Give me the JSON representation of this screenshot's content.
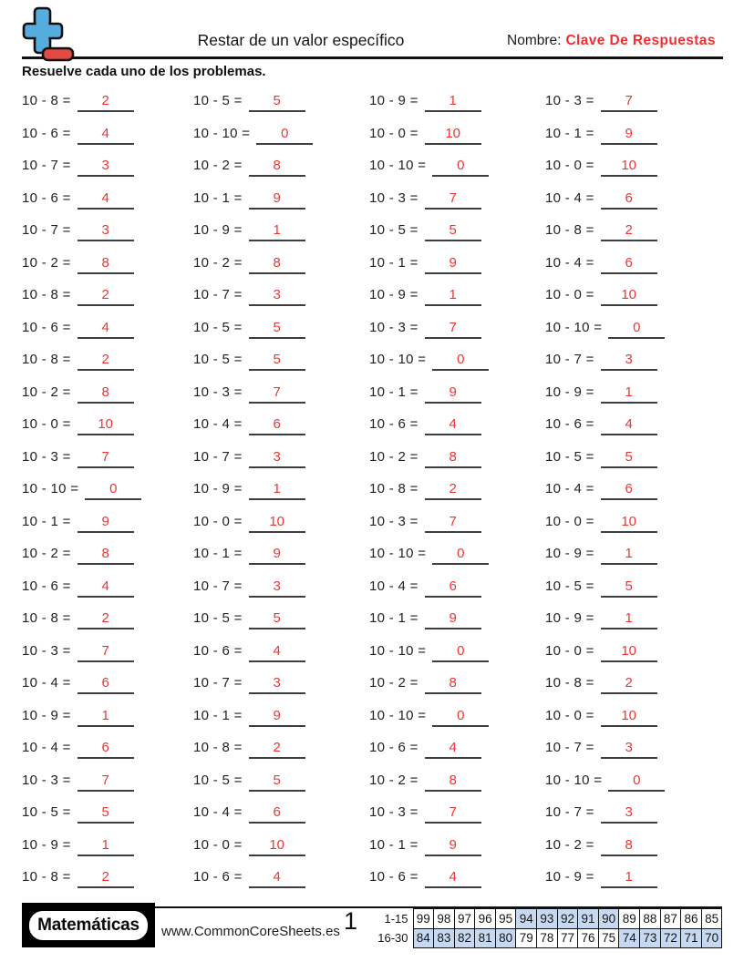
{
  "header": {
    "title": "Restar de un valor específico",
    "name_label": "Nombre:",
    "name_value": "Clave De Respuestas",
    "instruction": "Resuelve cada uno de los problemas."
  },
  "colors": {
    "answer_red": "#ef3434",
    "score_shade_blue": "#c6d9f0",
    "logo_plus_blue": "#55acdd",
    "logo_minus_red": "#e24a43"
  },
  "problems": {
    "columns": [
      {
        "items": [
          {
            "q": "10 - 8 =",
            "a": "2"
          },
          {
            "q": "10 - 6 =",
            "a": "4"
          },
          {
            "q": "10 - 7 =",
            "a": "3"
          },
          {
            "q": "10 - 6 =",
            "a": "4"
          },
          {
            "q": "10 - 7 =",
            "a": "3"
          },
          {
            "q": "10 - 2 =",
            "a": "8"
          },
          {
            "q": "10 - 8 =",
            "a": "2"
          },
          {
            "q": "10 - 6 =",
            "a": "4"
          },
          {
            "q": "10 - 8 =",
            "a": "2"
          },
          {
            "q": "10 - 2 =",
            "a": "8"
          },
          {
            "q": "10 - 0 =",
            "a": "10"
          },
          {
            "q": "10 - 3 =",
            "a": "7"
          },
          {
            "q": "10 - 10 =",
            "a": "0"
          },
          {
            "q": "10 - 1 =",
            "a": "9"
          },
          {
            "q": "10 - 2 =",
            "a": "8"
          },
          {
            "q": "10 - 6 =",
            "a": "4"
          },
          {
            "q": "10 - 8 =",
            "a": "2"
          },
          {
            "q": "10 - 3 =",
            "a": "7"
          },
          {
            "q": "10 - 4 =",
            "a": "6"
          },
          {
            "q": "10 - 9 =",
            "a": "1"
          },
          {
            "q": "10 - 4 =",
            "a": "6"
          },
          {
            "q": "10 - 3 =",
            "a": "7"
          },
          {
            "q": "10 - 5 =",
            "a": "5"
          },
          {
            "q": "10 - 9 =",
            "a": "1"
          },
          {
            "q": "10 - 8 =",
            "a": "2"
          }
        ]
      },
      {
        "items": [
          {
            "q": "10 - 5 =",
            "a": "5"
          },
          {
            "q": "10 - 10 =",
            "a": "0"
          },
          {
            "q": "10 - 2 =",
            "a": "8"
          },
          {
            "q": "10 - 1 =",
            "a": "9"
          },
          {
            "q": "10 - 9 =",
            "a": "1"
          },
          {
            "q": "10 - 2 =",
            "a": "8"
          },
          {
            "q": "10 - 7 =",
            "a": "3"
          },
          {
            "q": "10 - 5 =",
            "a": "5"
          },
          {
            "q": "10 - 5 =",
            "a": "5"
          },
          {
            "q": "10 - 3 =",
            "a": "7"
          },
          {
            "q": "10 - 4 =",
            "a": "6"
          },
          {
            "q": "10 - 7 =",
            "a": "3"
          },
          {
            "q": "10 - 9 =",
            "a": "1"
          },
          {
            "q": "10 - 0 =",
            "a": "10"
          },
          {
            "q": "10 - 1 =",
            "a": "9"
          },
          {
            "q": "10 - 7 =",
            "a": "3"
          },
          {
            "q": "10 - 5 =",
            "a": "5"
          },
          {
            "q": "10 - 6 =",
            "a": "4"
          },
          {
            "q": "10 - 7 =",
            "a": "3"
          },
          {
            "q": "10 - 1 =",
            "a": "9"
          },
          {
            "q": "10 - 8 =",
            "a": "2"
          },
          {
            "q": "10 - 5 =",
            "a": "5"
          },
          {
            "q": "10 - 4 =",
            "a": "6"
          },
          {
            "q": "10 - 0 =",
            "a": "10"
          },
          {
            "q": "10 - 6 =",
            "a": "4"
          }
        ]
      },
      {
        "items": [
          {
            "q": "10 - 9 =",
            "a": "1"
          },
          {
            "q": "10 - 0 =",
            "a": "10"
          },
          {
            "q": "10 - 10 =",
            "a": "0"
          },
          {
            "q": "10 - 3 =",
            "a": "7"
          },
          {
            "q": "10 - 5 =",
            "a": "5"
          },
          {
            "q": "10 - 1 =",
            "a": "9"
          },
          {
            "q": "10 - 9 =",
            "a": "1"
          },
          {
            "q": "10 - 3 =",
            "a": "7"
          },
          {
            "q": "10 - 10 =",
            "a": "0"
          },
          {
            "q": "10 - 1 =",
            "a": "9"
          },
          {
            "q": "10 - 6 =",
            "a": "4"
          },
          {
            "q": "10 - 2 =",
            "a": "8"
          },
          {
            "q": "10 - 8 =",
            "a": "2"
          },
          {
            "q": "10 - 3 =",
            "a": "7"
          },
          {
            "q": "10 - 10 =",
            "a": "0"
          },
          {
            "q": "10 - 4 =",
            "a": "6"
          },
          {
            "q": "10 - 1 =",
            "a": "9"
          },
          {
            "q": "10 - 10 =",
            "a": "0"
          },
          {
            "q": "10 - 2 =",
            "a": "8"
          },
          {
            "q": "10 - 10 =",
            "a": "0"
          },
          {
            "q": "10 - 6 =",
            "a": "4"
          },
          {
            "q": "10 - 2 =",
            "a": "8"
          },
          {
            "q": "10 - 3 =",
            "a": "7"
          },
          {
            "q": "10 - 1 =",
            "a": "9"
          },
          {
            "q": "10 - 6 =",
            "a": "4"
          }
        ]
      },
      {
        "items": [
          {
            "q": "10 - 3 =",
            "a": "7"
          },
          {
            "q": "10 - 1 =",
            "a": "9"
          },
          {
            "q": "10 - 0 =",
            "a": "10"
          },
          {
            "q": "10 - 4 =",
            "a": "6"
          },
          {
            "q": "10 - 8 =",
            "a": "2"
          },
          {
            "q": "10 - 4 =",
            "a": "6"
          },
          {
            "q": "10 - 0 =",
            "a": "10"
          },
          {
            "q": "10 - 10 =",
            "a": "0"
          },
          {
            "q": "10 - 7 =",
            "a": "3"
          },
          {
            "q": "10 - 9 =",
            "a": "1"
          },
          {
            "q": "10 - 6 =",
            "a": "4"
          },
          {
            "q": "10 - 5 =",
            "a": "5"
          },
          {
            "q": "10 - 4 =",
            "a": "6"
          },
          {
            "q": "10 - 0 =",
            "a": "10"
          },
          {
            "q": "10 - 9 =",
            "a": "1"
          },
          {
            "q": "10 - 5 =",
            "a": "5"
          },
          {
            "q": "10 - 9 =",
            "a": "1"
          },
          {
            "q": "10 - 0 =",
            "a": "10"
          },
          {
            "q": "10 - 8 =",
            "a": "2"
          },
          {
            "q": "10 - 0 =",
            "a": "10"
          },
          {
            "q": "10 - 7 =",
            "a": "3"
          },
          {
            "q": "10 - 10 =",
            "a": "0"
          },
          {
            "q": "10 - 7 =",
            "a": "3"
          },
          {
            "q": "10 - 2 =",
            "a": "8"
          },
          {
            "q": "10 - 9 =",
            "a": "1"
          }
        ]
      }
    ]
  },
  "footer": {
    "brand": "Matemáticas",
    "website": "www.CommonCoreSheets.es",
    "page_number": "1",
    "score_table": {
      "rows": [
        {
          "label": "1-15",
          "values": [
            "99",
            "98",
            "97",
            "96",
            "95",
            "94",
            "93",
            "92",
            "91",
            "90",
            "89",
            "88",
            "87",
            "86",
            "85"
          ],
          "shaded": [
            false,
            false,
            false,
            false,
            false,
            true,
            true,
            true,
            true,
            true,
            false,
            false,
            false,
            false,
            false
          ]
        },
        {
          "label": "16-30",
          "values": [
            "84",
            "83",
            "82",
            "81",
            "80",
            "79",
            "78",
            "77",
            "76",
            "75",
            "74",
            "73",
            "72",
            "71",
            "70"
          ],
          "shaded": [
            true,
            true,
            true,
            true,
            true,
            false,
            false,
            false,
            false,
            false,
            true,
            true,
            true,
            true,
            true
          ]
        }
      ]
    }
  }
}
